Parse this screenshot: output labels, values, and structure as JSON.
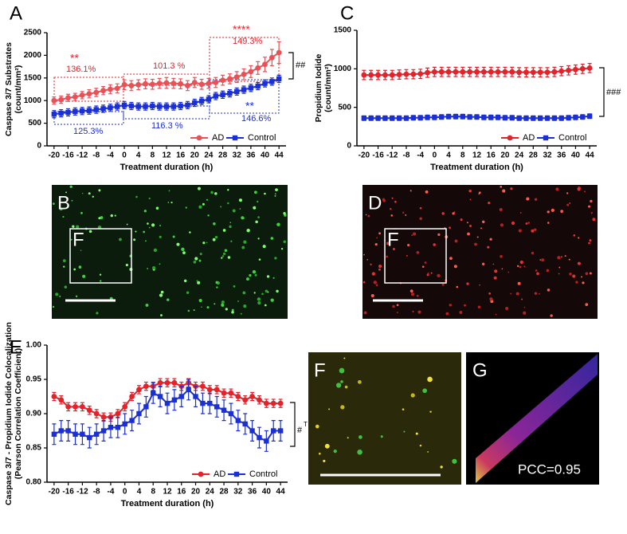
{
  "chart_data": [
    {
      "type": "line",
      "panel_label": "A",
      "ylabel": [
        "Caspase 3/7 Substrates",
        "(count/mm²)"
      ],
      "xlabel": "Treatment duration (h)",
      "x": [
        -20,
        -18,
        -16,
        -14,
        -12,
        -10,
        -8,
        -6,
        -4,
        -2,
        0,
        2,
        4,
        6,
        8,
        10,
        12,
        14,
        16,
        18,
        20,
        22,
        24,
        26,
        28,
        30,
        32,
        34,
        36,
        38,
        40,
        42,
        44
      ],
      "xlim": [
        -22,
        46
      ],
      "xticks": [
        -20,
        -16,
        -12,
        -8,
        -4,
        0,
        4,
        8,
        12,
        16,
        20,
        24,
        28,
        32,
        36,
        40,
        44
      ],
      "ylim": [
        0,
        2500
      ],
      "yticks": [
        0,
        500,
        1000,
        1500,
        2000,
        2500
      ],
      "legend": "lower right",
      "series": [
        {
          "name": "AD",
          "color": "#ea5157",
          "marker": "circle",
          "values": [
            1000,
            1020,
            1060,
            1080,
            1120,
            1150,
            1180,
            1220,
            1250,
            1270,
            1350,
            1330,
            1350,
            1370,
            1360,
            1380,
            1390,
            1380,
            1370,
            1330,
            1400,
            1360,
            1380,
            1400,
            1450,
            1480,
            1520,
            1580,
            1640,
            1720,
            1800,
            1950,
            2060
          ],
          "errors": [
            80,
            80,
            80,
            80,
            80,
            90,
            90,
            90,
            100,
            100,
            110,
            110,
            110,
            110,
            110,
            110,
            120,
            110,
            110,
            110,
            110,
            110,
            110,
            110,
            110,
            110,
            120,
            120,
            130,
            140,
            160,
            180,
            240
          ]
        },
        {
          "name": "Control",
          "color": "#1a2fd6",
          "marker": "square",
          "values": [
            700,
            720,
            740,
            760,
            770,
            780,
            800,
            820,
            840,
            870,
            900,
            880,
            870,
            870,
            880,
            870,
            870,
            870,
            880,
            900,
            950,
            990,
            1030,
            1100,
            1130,
            1160,
            1200,
            1240,
            1280,
            1320,
            1380,
            1420,
            1480
          ],
          "errors": [
            80,
            80,
            80,
            80,
            80,
            80,
            80,
            80,
            80,
            80,
            80,
            80,
            80,
            80,
            80,
            80,
            80,
            80,
            80,
            80,
            80,
            80,
            80,
            80,
            80,
            80,
            80,
            80,
            80,
            80,
            80,
            80,
            80
          ]
        }
      ],
      "annotations": [
        "**",
        "136.1%",
        "101.3 %",
        "****",
        "149.3%",
        "125.3%",
        "116.3 %",
        "**",
        "146.6%",
        "##"
      ]
    },
    {
      "type": "line",
      "panel_label": "C",
      "ylabel": [
        "Propidium Iodide",
        "(count/mm²)"
      ],
      "xlabel": "Treatment duration (h)",
      "x": [
        -20,
        -18,
        -16,
        -14,
        -12,
        -10,
        -8,
        -6,
        -4,
        -2,
        0,
        2,
        4,
        6,
        8,
        10,
        12,
        14,
        16,
        18,
        20,
        22,
        24,
        26,
        28,
        30,
        32,
        34,
        36,
        38,
        40,
        42,
        44
      ],
      "xlim": [
        -22,
        46
      ],
      "xticks": [
        -20,
        -16,
        -12,
        -8,
        -4,
        0,
        4,
        8,
        12,
        16,
        20,
        24,
        28,
        32,
        36,
        40,
        44
      ],
      "ylim": [
        0,
        1500
      ],
      "yticks": [
        0,
        500,
        1000,
        1500
      ],
      "legend": "lower right",
      "series": [
        {
          "name": "AD",
          "color": "#e4222a",
          "marker": "circle",
          "values": [
            920,
            920,
            920,
            920,
            920,
            925,
            930,
            930,
            935,
            950,
            960,
            960,
            960,
            960,
            960,
            960,
            960,
            960,
            960,
            960,
            960,
            960,
            955,
            955,
            955,
            955,
            955,
            960,
            970,
            980,
            990,
            1000,
            1010
          ],
          "errors": [
            60,
            60,
            60,
            60,
            60,
            60,
            60,
            60,
            60,
            60,
            60,
            60,
            60,
            60,
            60,
            60,
            60,
            60,
            60,
            60,
            60,
            60,
            60,
            60,
            60,
            60,
            60,
            60,
            60,
            60,
            60,
            60,
            60
          ]
        },
        {
          "name": "Control",
          "color": "#1a2fd6",
          "marker": "square",
          "values": [
            360,
            360,
            360,
            360,
            360,
            360,
            360,
            365,
            365,
            370,
            370,
            375,
            380,
            380,
            380,
            375,
            375,
            370,
            370,
            370,
            365,
            365,
            360,
            360,
            360,
            360,
            360,
            360,
            360,
            365,
            370,
            375,
            385
          ],
          "errors": [
            30,
            30,
            30,
            30,
            30,
            30,
            30,
            30,
            30,
            30,
            30,
            30,
            30,
            30,
            30,
            30,
            30,
            30,
            30,
            30,
            30,
            30,
            30,
            30,
            30,
            30,
            30,
            30,
            30,
            30,
            30,
            30,
            30
          ]
        }
      ],
      "annotations": [
        "###"
      ]
    },
    {
      "type": "line",
      "panel_label": "E",
      "ylabel": [
        "Caspase 3/7 - Propidium Iodide Colocalization",
        "(Pearson Correlation Coefficient)"
      ],
      "xlabel": "Treatment duration (h)",
      "x": [
        -20,
        -18,
        -16,
        -14,
        -12,
        -10,
        -8,
        -6,
        -4,
        -2,
        0,
        2,
        4,
        6,
        8,
        10,
        12,
        14,
        16,
        18,
        20,
        22,
        24,
        26,
        28,
        30,
        32,
        34,
        36,
        38,
        40,
        42,
        44
      ],
      "xlim": [
        -22,
        46
      ],
      "xticks": [
        -20,
        -16,
        -12,
        -8,
        -4,
        0,
        4,
        8,
        12,
        16,
        20,
        24,
        28,
        32,
        36,
        40,
        44
      ],
      "ylim": [
        0.8,
        1.0
      ],
      "yticks": [
        {
          "value": 0.8,
          "label": "0.80"
        },
        0.85,
        {
          "value": 0.9,
          "label": "0.90"
        },
        0.95,
        {
          "value": 1.0,
          "label": "1.00"
        }
      ],
      "legend": "lower right",
      "series": [
        {
          "name": "AD",
          "color": "#e4222a",
          "marker": "circle",
          "values": [
            0.925,
            0.92,
            0.91,
            0.91,
            0.91,
            0.905,
            0.9,
            0.895,
            0.895,
            0.9,
            0.91,
            0.925,
            0.935,
            0.94,
            0.94,
            0.945,
            0.945,
            0.945,
            0.94,
            0.945,
            0.94,
            0.94,
            0.935,
            0.935,
            0.93,
            0.93,
            0.925,
            0.92,
            0.925,
            0.92,
            0.915,
            0.915,
            0.915
          ],
          "errors": [
            0.006,
            0.006,
            0.006,
            0.006,
            0.006,
            0.006,
            0.006,
            0.006,
            0.006,
            0.006,
            0.006,
            0.006,
            0.006,
            0.006,
            0.006,
            0.006,
            0.006,
            0.006,
            0.006,
            0.006,
            0.006,
            0.006,
            0.006,
            0.006,
            0.006,
            0.006,
            0.006,
            0.006,
            0.006,
            0.006,
            0.006,
            0.006,
            0.006
          ]
        },
        {
          "name": "Control",
          "color": "#1a2fd6",
          "marker": "square",
          "values": [
            0.87,
            0.875,
            0.875,
            0.87,
            0.87,
            0.865,
            0.87,
            0.875,
            0.88,
            0.88,
            0.885,
            0.89,
            0.9,
            0.91,
            0.93,
            0.925,
            0.915,
            0.92,
            0.925,
            0.935,
            0.925,
            0.915,
            0.915,
            0.91,
            0.905,
            0.9,
            0.89,
            0.885,
            0.875,
            0.865,
            0.86,
            0.875,
            0.875
          ],
          "errors": [
            0.015,
            0.015,
            0.015,
            0.015,
            0.015,
            0.015,
            0.015,
            0.015,
            0.015,
            0.015,
            0.015,
            0.015,
            0.015,
            0.015,
            0.015,
            0.015,
            0.015,
            0.015,
            0.015,
            0.015,
            0.015,
            0.015,
            0.015,
            0.015,
            0.015,
            0.015,
            0.015,
            0.015,
            0.015,
            0.015,
            0.015,
            0.015,
            0.015
          ]
        }
      ],
      "annotations": [
        "#",
        "T"
      ]
    }
  ],
  "images": [
    {
      "panel_label": "B",
      "inset_label": "F"
    },
    {
      "panel_label": "D",
      "inset_label": "F"
    },
    {
      "panel_label": "F"
    },
    {
      "panel_label": "G",
      "annotation": "PCC=0.95"
    }
  ]
}
